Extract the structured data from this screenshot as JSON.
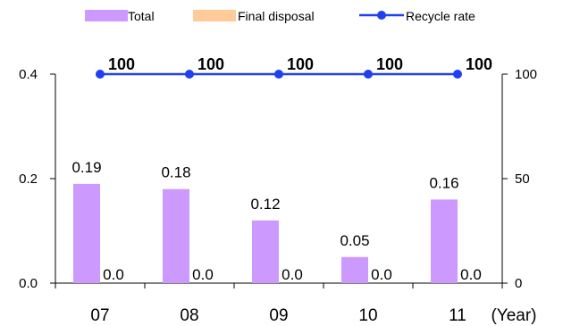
{
  "chart_data": {
    "type": "bar",
    "categories": [
      "07",
      "08",
      "09",
      "10",
      "11"
    ],
    "xlabel": "(Year)",
    "ylim": [
      0,
      0.4
    ],
    "y_ticks": [
      "0.0",
      "0.2",
      "0.4"
    ],
    "y2lim": [
      0,
      100
    ],
    "y2_ticks": [
      "0",
      "50",
      "100"
    ],
    "legend_position": "top",
    "grid": false,
    "series": [
      {
        "name": "Total",
        "kind": "bar",
        "axis": "left",
        "color": "#cc99ff",
        "values": [
          0.19,
          0.18,
          0.12,
          0.05,
          0.16
        ],
        "labels": [
          "0.19",
          "0.18",
          "0.12",
          "0.05",
          "0.16"
        ]
      },
      {
        "name": "Final disposal",
        "kind": "bar",
        "axis": "left",
        "color": "#ffcc99",
        "values": [
          0.0,
          0.0,
          0.0,
          0.0,
          0.0
        ],
        "labels": [
          "0.0",
          "0.0",
          "0.0",
          "0.0",
          "0.0"
        ]
      },
      {
        "name": "Recycle rate",
        "kind": "line",
        "axis": "right",
        "color": "#1f3ff0",
        "values": [
          100,
          100,
          100,
          100,
          100
        ],
        "labels": [
          "100",
          "100",
          "100",
          "100",
          "100"
        ]
      }
    ]
  }
}
